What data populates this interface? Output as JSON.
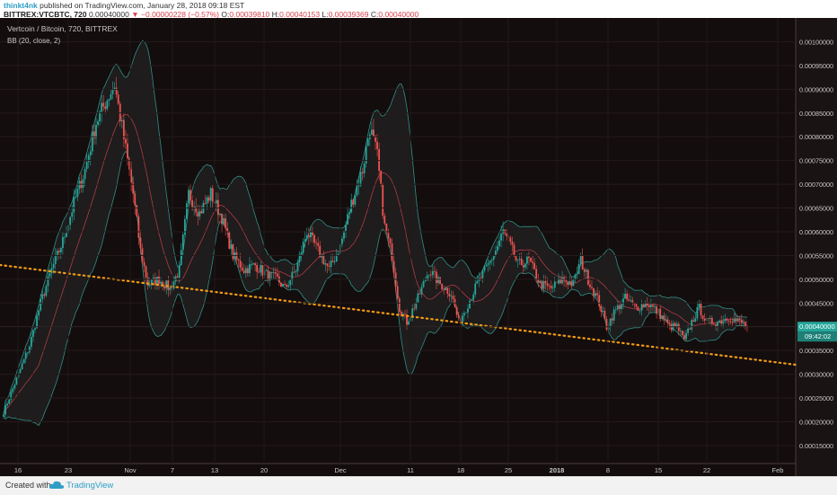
{
  "header": {
    "user": "thinkt4nk",
    "published": " published on TradingView.com, January 28, 2018 09:18 EST",
    "symbol": "BITTREX:VTCBTC, 720",
    "last": "0.00040000",
    "arrow": "▼",
    "change": "−0.00000228 (−0.57%)",
    "open_label": "O:",
    "open": "0.00039810",
    "high_label": "H:",
    "high": "0.00040153",
    "low_label": "L:",
    "low": "0.00039369",
    "close_label": "C:",
    "close": "0.00040000"
  },
  "chart_title": "Vertcoin / Bitcoin, 720, BITTREX",
  "indicator": "BB (20, close, 2)",
  "price_badge": "0.00040000",
  "time_badge": "09:42:02",
  "footer": {
    "created": "Created with",
    "brand": "TradingView"
  },
  "chart_data": {
    "type": "candlestick",
    "pair": "VTCBTC",
    "interval": "720",
    "ylim": [
      0.000112,
      0.00105
    ],
    "y_ticks": [
      "0.00100000",
      "0.00095000",
      "0.00090000",
      "0.00085000",
      "0.00080000",
      "0.00075000",
      "0.00070000",
      "0.00065000",
      "0.00060000",
      "0.00055000",
      "0.00050000",
      "0.00045000",
      "0.00040000",
      "0.00035000",
      "0.00030000",
      "0.00025000",
      "0.00020000",
      "0.00015000"
    ],
    "x_ticks": [
      "16",
      "23",
      "Nov",
      "7",
      "13",
      "20",
      "Dec",
      "11",
      "18",
      "25",
      "2018",
      "8",
      "15",
      "22",
      "Feb"
    ],
    "trendline": {
      "style": "dotted",
      "color": "#f39c12",
      "from_price": 0.00053,
      "to_price": 0.00032
    },
    "current_price": 0.0004,
    "colors": {
      "up": "#26a69a",
      "down": "#ef5350",
      "band": "#2e8f88",
      "basis": "#b03a48",
      "bg": "#140d0d",
      "trend": "#f39c12"
    },
    "key_points": [
      [
        0,
        0.00022
      ],
      [
        8,
        0.0003
      ],
      [
        14,
        0.00036
      ],
      [
        20,
        0.00045
      ],
      [
        26,
        0.00052
      ],
      [
        32,
        0.00058
      ],
      [
        38,
        0.00066
      ],
      [
        44,
        0.00073
      ],
      [
        50,
        0.00083
      ],
      [
        56,
        0.00088
      ],
      [
        60,
        0.00091
      ],
      [
        64,
        0.00082
      ],
      [
        70,
        0.00068
      ],
      [
        74,
        0.00056
      ],
      [
        78,
        0.00049
      ],
      [
        84,
        0.0005
      ],
      [
        90,
        0.00048
      ],
      [
        95,
        0.00052
      ],
      [
        100,
        0.00068
      ],
      [
        106,
        0.00064
      ],
      [
        112,
        0.00068
      ],
      [
        118,
        0.00063
      ],
      [
        124,
        0.00055
      ],
      [
        130,
        0.00052
      ],
      [
        136,
        0.00053
      ],
      [
        142,
        0.00051
      ],
      [
        148,
        0.0005
      ],
      [
        152,
        0.00048
      ],
      [
        158,
        0.00052
      ],
      [
        164,
        0.0006
      ],
      [
        170,
        0.00056
      ],
      [
        176,
        0.00052
      ],
      [
        182,
        0.00057
      ],
      [
        188,
        0.00066
      ],
      [
        194,
        0.00073
      ],
      [
        198,
        0.00082
      ],
      [
        202,
        0.00076
      ],
      [
        206,
        0.00061
      ],
      [
        210,
        0.00055
      ],
      [
        214,
        0.00044
      ],
      [
        218,
        0.00041
      ],
      [
        224,
        0.00046
      ],
      [
        230,
        0.00052
      ],
      [
        236,
        0.00049
      ],
      [
        242,
        0.00047
      ],
      [
        246,
        0.00041
      ],
      [
        250,
        0.00044
      ],
      [
        256,
        0.00049
      ],
      [
        262,
        0.00053
      ],
      [
        266,
        0.00056
      ],
      [
        270,
        0.0006
      ],
      [
        274,
        0.00057
      ],
      [
        278,
        0.00053
      ],
      [
        284,
        0.00054
      ],
      [
        290,
        0.00049
      ],
      [
        296,
        0.00048
      ],
      [
        302,
        0.0005
      ],
      [
        308,
        0.00049
      ],
      [
        312,
        0.00054
      ],
      [
        316,
        0.0005
      ],
      [
        322,
        0.00045
      ],
      [
        326,
        0.0004
      ],
      [
        330,
        0.00043
      ],
      [
        336,
        0.00046
      ],
      [
        342,
        0.00044
      ],
      [
        348,
        0.00045
      ],
      [
        354,
        0.00043
      ],
      [
        360,
        0.0004
      ],
      [
        364,
        0.0004
      ],
      [
        368,
        0.00037
      ],
      [
        372,
        0.00041
      ],
      [
        376,
        0.00044
      ],
      [
        380,
        0.00041
      ],
      [
        386,
        0.00041
      ],
      [
        392,
        0.00042
      ],
      [
        398,
        0.00041
      ],
      [
        402,
        0.0004
      ]
    ]
  }
}
